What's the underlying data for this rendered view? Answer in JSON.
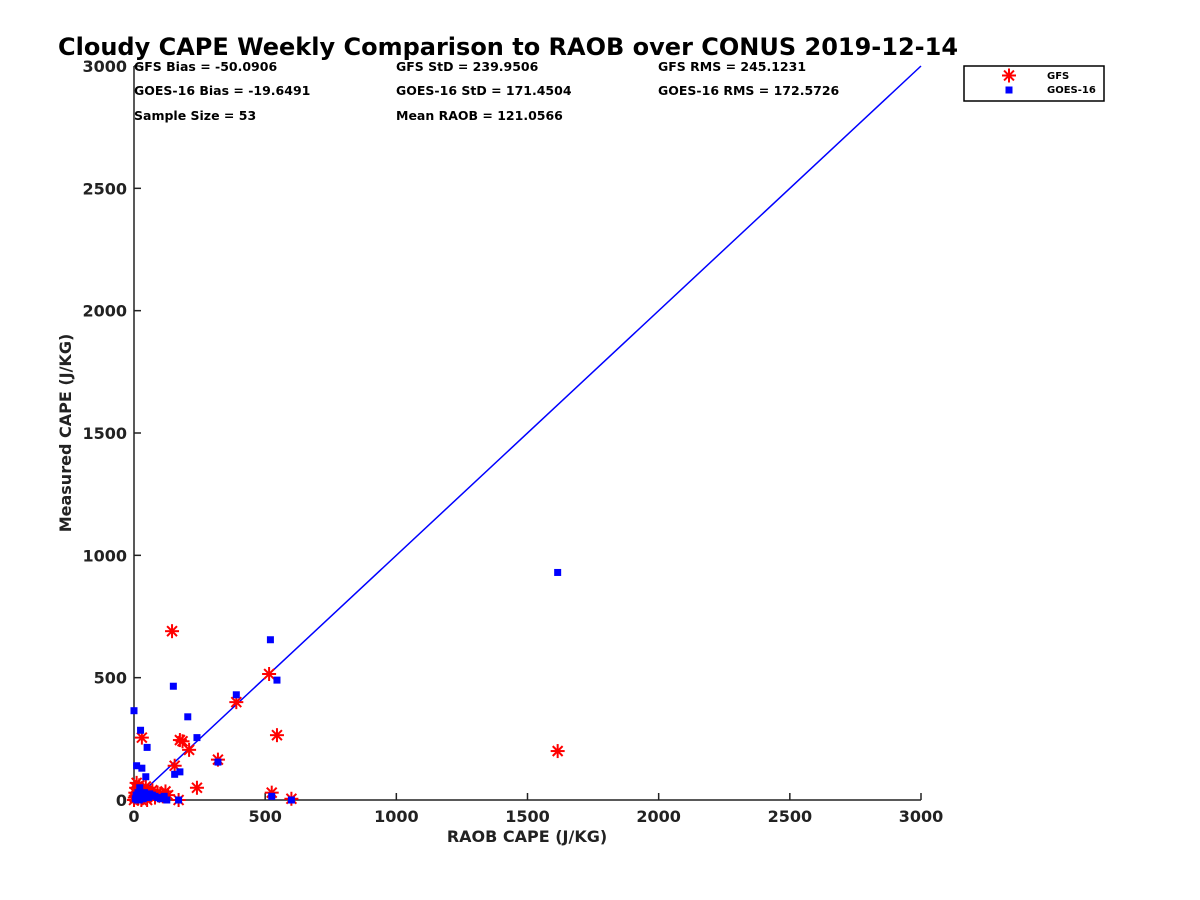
{
  "chart_data": {
    "type": "scatter",
    "title": "Cloudy CAPE Weekly Comparison to RAOB over CONUS 2019-12-14",
    "xlabel": "RAOB CAPE (J/KG)",
    "ylabel": "Measured CAPE (J/KG)",
    "xlim": [
      0,
      3000
    ],
    "ylim": [
      0,
      3000
    ],
    "xticks": [
      "0",
      "500",
      "1000",
      "1500",
      "2000",
      "2500",
      "3000"
    ],
    "yticks": [
      "0",
      "500",
      "1000",
      "1500",
      "2000",
      "2500",
      "3000"
    ],
    "grid": false,
    "legend_position": "top-right",
    "stats": [
      [
        "GFS Bias = -50.0906",
        "GFS StD = 239.9506",
        "GFS RMS = 245.1231"
      ],
      [
        "GOES-16 Bias = -19.6491",
        "GOES-16 StD = 171.4504",
        "GOES-16 RMS = 172.5726"
      ],
      [
        "Sample Size = 53",
        "Mean RAOB = 121.0566",
        ""
      ]
    ],
    "reference_line": {
      "from": [
        0,
        0
      ],
      "to": [
        3000,
        3000
      ],
      "color": "#0000ff"
    },
    "series": [
      {
        "name": "GFS",
        "marker": "asterisk",
        "color": "#ff0000",
        "points": [
          [
            0,
            0
          ],
          [
            3,
            10
          ],
          [
            5,
            30
          ],
          [
            8,
            50
          ],
          [
            10,
            70
          ],
          [
            12,
            20
          ],
          [
            15,
            5
          ],
          [
            18,
            40
          ],
          [
            20,
            60
          ],
          [
            25,
            15
          ],
          [
            28,
            0
          ],
          [
            30,
            255
          ],
          [
            35,
            10
          ],
          [
            40,
            25
          ],
          [
            45,
            55
          ],
          [
            50,
            0
          ],
          [
            55,
            35
          ],
          [
            60,
            20
          ],
          [
            70,
            40
          ],
          [
            80,
            10
          ],
          [
            90,
            30
          ],
          [
            100,
            25
          ],
          [
            110,
            15
          ],
          [
            120,
            35
          ],
          [
            130,
            20
          ],
          [
            145,
            690
          ],
          [
            155,
            140
          ],
          [
            170,
            0
          ],
          [
            175,
            245
          ],
          [
            185,
            240
          ],
          [
            210,
            205
          ],
          [
            240,
            50
          ],
          [
            320,
            165
          ],
          [
            390,
            400
          ],
          [
            515,
            515
          ],
          [
            525,
            30
          ],
          [
            545,
            265
          ],
          [
            600,
            5
          ],
          [
            1615,
            200
          ]
        ]
      },
      {
        "name": "GOES-16",
        "marker": "square",
        "color": "#0000ff",
        "points": [
          [
            0,
            365
          ],
          [
            5,
            5
          ],
          [
            8,
            20
          ],
          [
            10,
            140
          ],
          [
            12,
            0
          ],
          [
            15,
            30
          ],
          [
            18,
            10
          ],
          [
            20,
            0
          ],
          [
            22,
            50
          ],
          [
            25,
            285
          ],
          [
            28,
            15
          ],
          [
            30,
            130
          ],
          [
            35,
            5
          ],
          [
            40,
            30
          ],
          [
            45,
            95
          ],
          [
            50,
            215
          ],
          [
            55,
            10
          ],
          [
            60,
            25
          ],
          [
            70,
            20
          ],
          [
            80,
            15
          ],
          [
            90,
            10
          ],
          [
            100,
            5
          ],
          [
            115,
            15
          ],
          [
            125,
            0
          ],
          [
            150,
            465
          ],
          [
            155,
            105
          ],
          [
            170,
            0
          ],
          [
            175,
            115
          ],
          [
            205,
            340
          ],
          [
            240,
            255
          ],
          [
            320,
            155
          ],
          [
            390,
            430
          ],
          [
            520,
            655
          ],
          [
            525,
            15
          ],
          [
            545,
            490
          ],
          [
            600,
            0
          ],
          [
            1615,
            930
          ]
        ]
      }
    ]
  }
}
